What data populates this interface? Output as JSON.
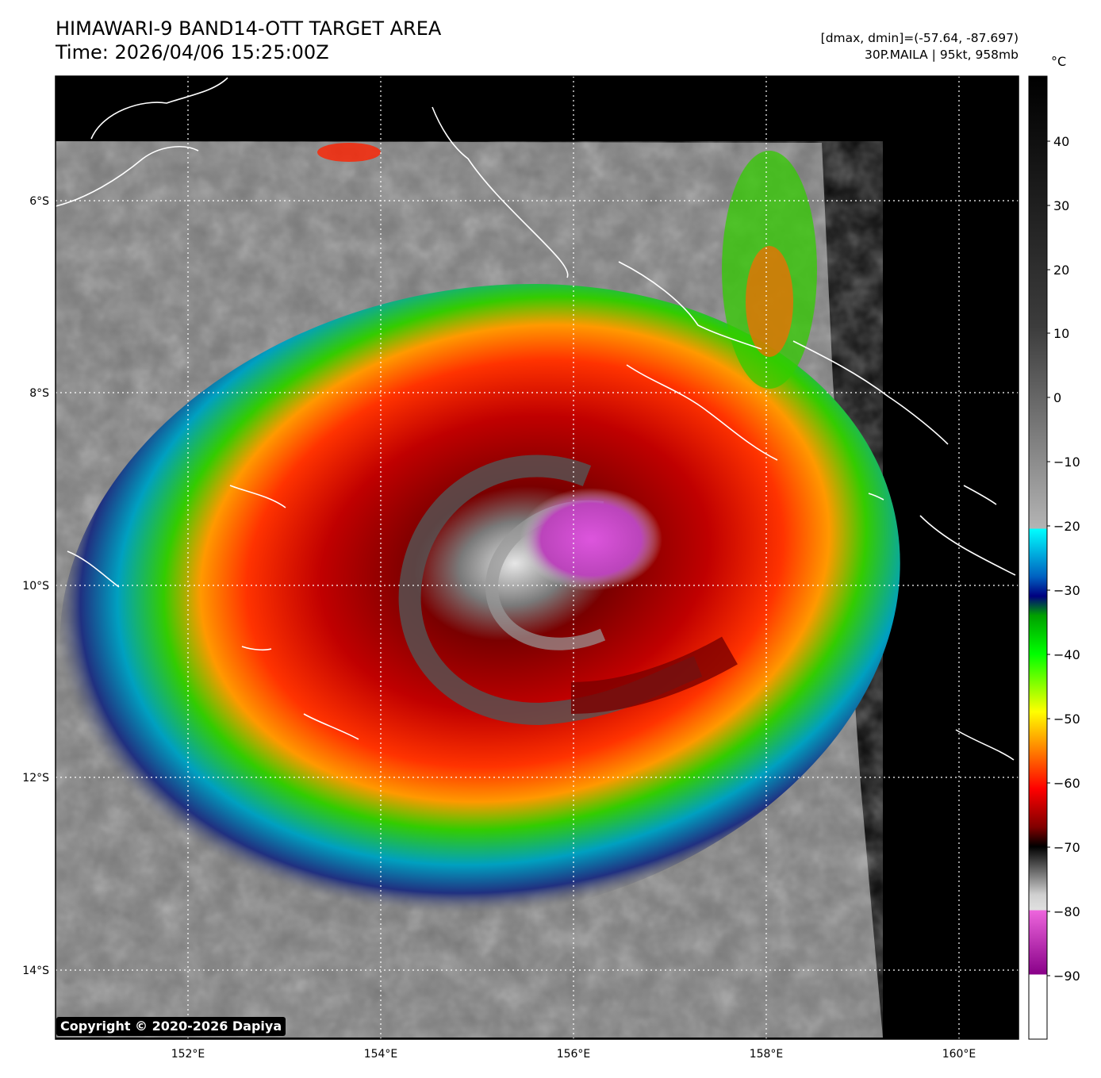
{
  "header": {
    "title": "HIMAWARI-9 BAND14-OTT TARGET AREA",
    "time": "Time: 2026/04/06 15:25:00Z",
    "range": "[dmax, dmin]=(-57.64, -87.697)",
    "storm": "30P.MAILA | 95kt, 958mb"
  },
  "map": {
    "lon_ticks": [
      "152°E",
      "154°E",
      "156°E",
      "158°E",
      "160°E"
    ],
    "lat_ticks": [
      "6°S",
      "8°S",
      "10°S",
      "12°S",
      "14°S"
    ],
    "background_color": "#000000",
    "coastline_color": "#ffffff",
    "grid": "dotted white"
  },
  "colorbar": {
    "unit": "°C",
    "ticks": [
      "40",
      "30",
      "20",
      "10",
      "0",
      "−10",
      "−20",
      "−30",
      "−40",
      "−50",
      "−60",
      "−70",
      "−80",
      "−90"
    ],
    "range": [
      -100,
      50
    ]
  },
  "copyright": "Copyright © 2020-2026 Dapiya"
}
